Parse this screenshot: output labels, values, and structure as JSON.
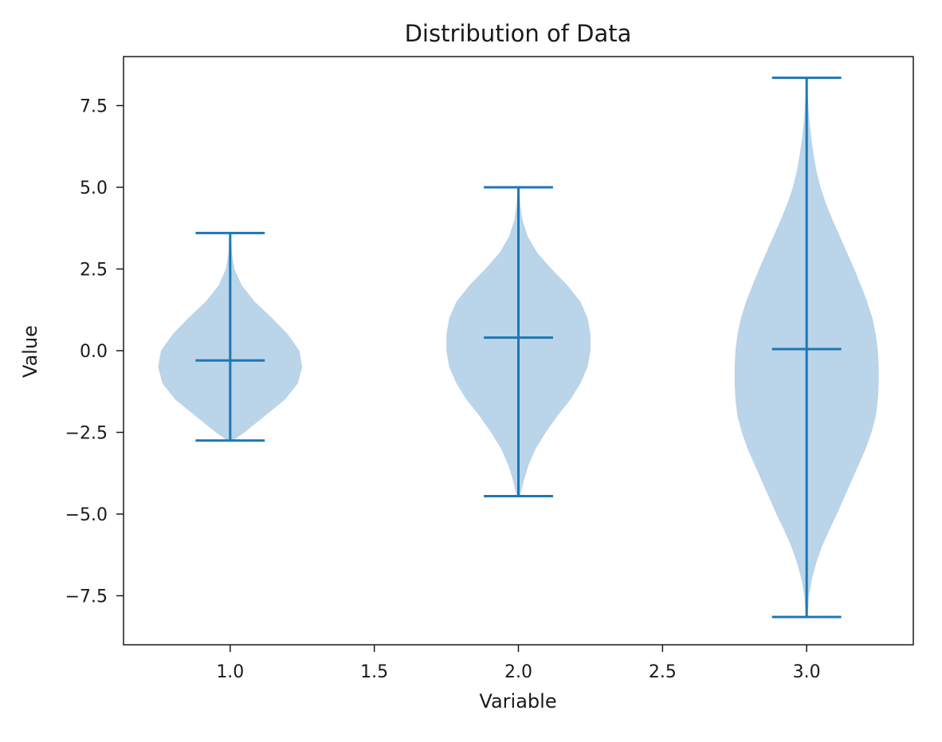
{
  "chart_data": {
    "type": "violin",
    "title": "Distribution of Data",
    "xlabel": "Variable",
    "ylabel": "Value",
    "xlim": [
      0.63,
      3.37
    ],
    "ylim": [
      -9.0,
      9.0
    ],
    "x_ticks": [
      1.0,
      1.5,
      2.0,
      2.5,
      3.0
    ],
    "x_tick_labels": [
      "1.0",
      "1.5",
      "2.0",
      "2.5",
      "3.0"
    ],
    "y_ticks": [
      -7.5,
      -5.0,
      -2.5,
      0.0,
      2.5,
      5.0,
      7.5
    ],
    "y_tick_labels": [
      "−7.5",
      "−5.0",
      "−2.5",
      "0.0",
      "2.5",
      "5.0",
      "7.5"
    ],
    "grid": false,
    "color": "#1f77b4",
    "fill_color": "#bad4e9",
    "violins": [
      {
        "position": 1,
        "min": -2.75,
        "max": 3.6,
        "median": -0.3,
        "profile": [
          [
            -2.75,
            0.01
          ],
          [
            -2.5,
            0.05
          ],
          [
            -2.0,
            0.12
          ],
          [
            -1.5,
            0.19
          ],
          [
            -1.0,
            0.235
          ],
          [
            -0.5,
            0.25
          ],
          [
            0.0,
            0.24
          ],
          [
            0.5,
            0.2
          ],
          [
            1.0,
            0.145
          ],
          [
            1.5,
            0.085
          ],
          [
            2.0,
            0.04
          ],
          [
            2.5,
            0.015
          ],
          [
            3.0,
            0.006
          ],
          [
            3.6,
            0.002
          ]
        ]
      },
      {
        "position": 2,
        "min": -4.45,
        "max": 5.0,
        "median": 0.4,
        "profile": [
          [
            -4.45,
            0.006
          ],
          [
            -4.0,
            0.018
          ],
          [
            -3.5,
            0.035
          ],
          [
            -3.0,
            0.06
          ],
          [
            -2.5,
            0.095
          ],
          [
            -2.0,
            0.135
          ],
          [
            -1.5,
            0.18
          ],
          [
            -1.0,
            0.215
          ],
          [
            -0.5,
            0.24
          ],
          [
            0.0,
            0.25
          ],
          [
            0.5,
            0.25
          ],
          [
            1.0,
            0.24
          ],
          [
            1.5,
            0.215
          ],
          [
            2.0,
            0.17
          ],
          [
            2.5,
            0.115
          ],
          [
            3.0,
            0.065
          ],
          [
            3.5,
            0.032
          ],
          [
            4.0,
            0.014
          ],
          [
            4.5,
            0.006
          ],
          [
            5.0,
            0.003
          ]
        ]
      },
      {
        "position": 3,
        "min": -8.15,
        "max": 8.35,
        "median": 0.05,
        "profile": [
          [
            -8.15,
            0.003
          ],
          [
            -7.5,
            0.008
          ],
          [
            -7.0,
            0.018
          ],
          [
            -6.5,
            0.033
          ],
          [
            -6.0,
            0.053
          ],
          [
            -5.5,
            0.078
          ],
          [
            -5.0,
            0.105
          ],
          [
            -4.5,
            0.13
          ],
          [
            -4.0,
            0.155
          ],
          [
            -3.5,
            0.18
          ],
          [
            -3.0,
            0.205
          ],
          [
            -2.5,
            0.225
          ],
          [
            -2.0,
            0.24
          ],
          [
            -1.5,
            0.247
          ],
          [
            -1.0,
            0.25
          ],
          [
            -0.5,
            0.25
          ],
          [
            0.0,
            0.247
          ],
          [
            0.5,
            0.24
          ],
          [
            1.0,
            0.228
          ],
          [
            1.5,
            0.21
          ],
          [
            2.0,
            0.188
          ],
          [
            2.5,
            0.165
          ],
          [
            3.0,
            0.14
          ],
          [
            3.5,
            0.115
          ],
          [
            4.0,
            0.09
          ],
          [
            4.5,
            0.067
          ],
          [
            5.0,
            0.048
          ],
          [
            5.5,
            0.034
          ],
          [
            6.0,
            0.024
          ],
          [
            6.5,
            0.016
          ],
          [
            7.0,
            0.01
          ],
          [
            7.5,
            0.006
          ],
          [
            8.0,
            0.003
          ],
          [
            8.35,
            0.002
          ]
        ]
      }
    ]
  }
}
